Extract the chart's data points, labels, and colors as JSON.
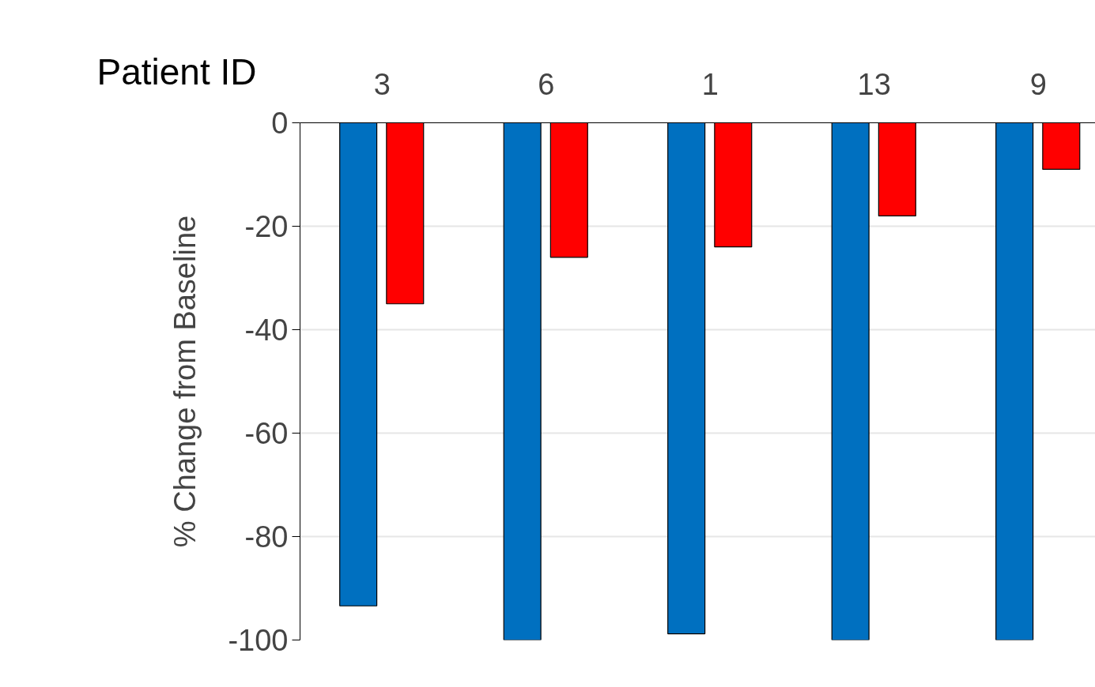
{
  "chart_data": {
    "type": "bar",
    "xlabel": "Patient ID",
    "ylabel": "% Change from Baseline",
    "categories": [
      "3",
      "6",
      "1",
      "13",
      "9"
    ],
    "series": [
      {
        "color": "#0070c0",
        "values": [
          -93.4,
          -100,
          -98.8,
          -100,
          -100
        ]
      },
      {
        "color": "#ff0000",
        "values": [
          -35,
          -26,
          -24,
          -18,
          -9
        ]
      }
    ],
    "ylim": [
      -100,
      0
    ],
    "yticks": [
      0,
      -20,
      -40,
      -60,
      -80,
      -100
    ],
    "grid": "y"
  }
}
